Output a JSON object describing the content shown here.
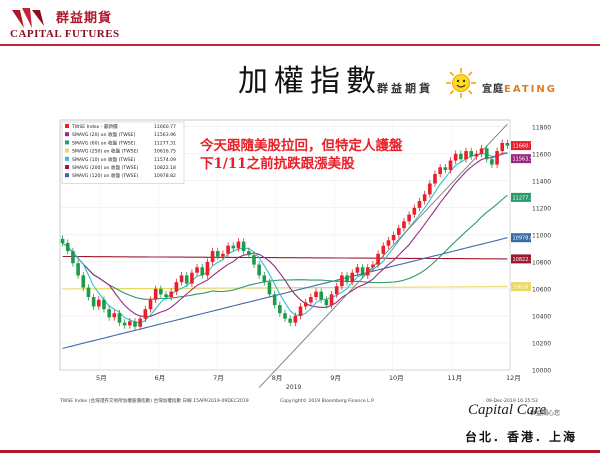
{
  "header": {
    "company_cn": "群益期貨",
    "company_en": "CAPITAL FUTURES",
    "title": "加權指數",
    "brand_note": "群益期貨",
    "brand_note2_prefix": "宜庭",
    "brand_note2_eat": "EATING"
  },
  "colors": {
    "brand_red": "#b0182a",
    "candle_up": "#e8202a",
    "candle_down": "#1f9a4a",
    "ma20": "#9a2a80",
    "ma60": "#2b9a6a",
    "ma250": "#e8d860",
    "ma10": "#30c0c8",
    "ma200": "#a01830",
    "ma120": "#3a6aa8",
    "trendline": "#7a7a7a"
  },
  "chart_data": {
    "type": "candlestick",
    "annotation": "今天跟隨美股拉回，但特定人護盤下1/11之前抗跌跟漲美股",
    "annotation_lines": [
      "今天跟隨美股拉回，但特定人護盤",
      "下1/11之前抗跌跟漲美股"
    ],
    "xlabel": "2019",
    "x_ticks": [
      "5月",
      "6月",
      "7月",
      "8月",
      "9月",
      "10月",
      "11月",
      "12月"
    ],
    "y_ticks": [
      10000,
      10200,
      10400,
      10600,
      10800,
      11000,
      11200,
      11400,
      11600,
      11800
    ],
    "ylim": [
      10000,
      11850
    ],
    "legend": [
      {
        "label": "TWSE Index - 最新價",
        "value": "11660.77",
        "color_key": "candle_up"
      },
      {
        "label": "SMAVG (20) on 收盤 (TWSE)",
        "value": "11563.96",
        "color_key": "ma20"
      },
      {
        "label": "SMAVG (60) on 收盤 (TWSE)",
        "value": "11277.31",
        "color_key": "ma60"
      },
      {
        "label": "SMAVG (250) on 收盤 (TWSE)",
        "value": "10616.75",
        "color_key": "ma250"
      },
      {
        "label": "SMAVG (10) on 收盤 (TWSE)",
        "value": "11574.09",
        "color_key": "ma10"
      },
      {
        "label": "SMAVG (200) on 收盤 (TWSE)",
        "value": "10822.18",
        "color_key": "ma200"
      },
      {
        "label": "SMAVG (120) on 收盤 (TWSE)",
        "value": "10978.82",
        "color_key": "ma120"
      }
    ],
    "right_value_tags": [
      {
        "value": "11660.77",
        "color_key": "candle_up"
      },
      {
        "value": "11563.96",
        "color_key": "ma20"
      },
      {
        "value": "11277.31",
        "color_key": "ma60"
      },
      {
        "value": "10978.82",
        "color_key": "ma120"
      },
      {
        "value": "10822.18",
        "color_key": "ma200"
      },
      {
        "value": "10616.75",
        "color_key": "ma250"
      }
    ],
    "closes": [
      10940,
      10880,
      10790,
      10700,
      10610,
      10540,
      10470,
      10520,
      10450,
      10390,
      10420,
      10350,
      10330,
      10360,
      10320,
      10380,
      10450,
      10520,
      10600,
      10560,
      10540,
      10580,
      10650,
      10700,
      10640,
      10720,
      10760,
      10700,
      10800,
      10880,
      10840,
      10860,
      10920,
      10900,
      10950,
      10880,
      10850,
      10780,
      10700,
      10650,
      10560,
      10480,
      10420,
      10380,
      10350,
      10400,
      10470,
      10500,
      10540,
      10580,
      10520,
      10480,
      10560,
      10620,
      10700,
      10650,
      10720,
      10760,
      10700,
      10760,
      10780,
      10860,
      10920,
      10960,
      11000,
      11050,
      11100,
      11150,
      11200,
      11250,
      11300,
      11380,
      11450,
      11500,
      11480,
      11550,
      11600,
      11560,
      11620,
      11580,
      11600,
      11640,
      11560,
      11520,
      11620,
      11680,
      11660
    ],
    "trendline": {
      "start": {
        "i": 38,
        "v": 9870
      },
      "end": {
        "i": 86,
        "v": 11820
      }
    },
    "footer_left": "TWSE Index (台灣證券交易所加權股價指數) 台灣加權指數   日線 15APR2019-09DEC2019",
    "footer_center": "Copyright© 2019 Bloomberg Finance L.P.",
    "footer_right": "09-Dec-2019 16:25:53"
  },
  "footer": {
    "logo": "Capital Care",
    "logo_sub": "群益關心您",
    "cities": "台北．香港．上海"
  }
}
